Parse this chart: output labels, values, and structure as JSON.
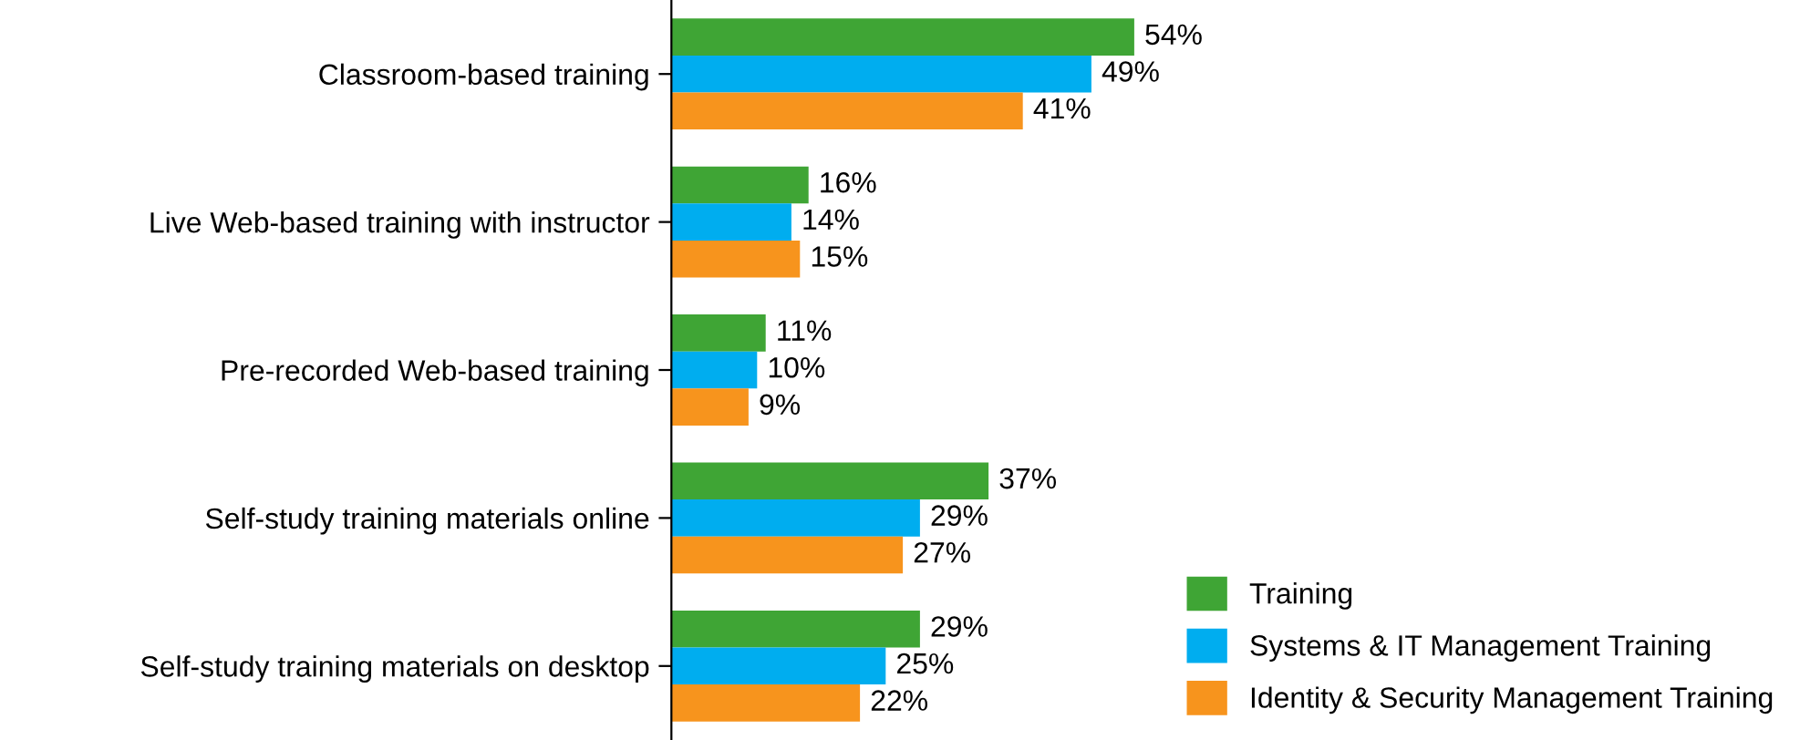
{
  "chart_data": {
    "type": "bar",
    "orientation": "horizontal",
    "categories": [
      "Classroom-based training",
      "Live Web-based training with instructor",
      "Pre-recorded Web-based training",
      "Self-study training materials online",
      "Self-study training materials on desktop"
    ],
    "series": [
      {
        "name": "Training",
        "color": "#3fa535",
        "values": [
          54,
          16,
          11,
          37,
          29
        ],
        "value_labels": [
          "54%",
          "16%",
          "11%",
          "37%",
          "29%"
        ]
      },
      {
        "name": "Systems & IT Management Training",
        "color": "#00adef",
        "values": [
          49,
          14,
          10,
          29,
          25
        ],
        "value_labels": [
          "49%",
          "14%",
          "10%",
          "29%",
          "25%"
        ]
      },
      {
        "name": "Identity & Security Management Training",
        "color": "#f7941d",
        "values": [
          41,
          15,
          9,
          27,
          22
        ],
        "value_labels": [
          "41%",
          "15%",
          "9%",
          "27%",
          "22%"
        ]
      }
    ],
    "legend": "bottom right",
    "grid": false
  }
}
